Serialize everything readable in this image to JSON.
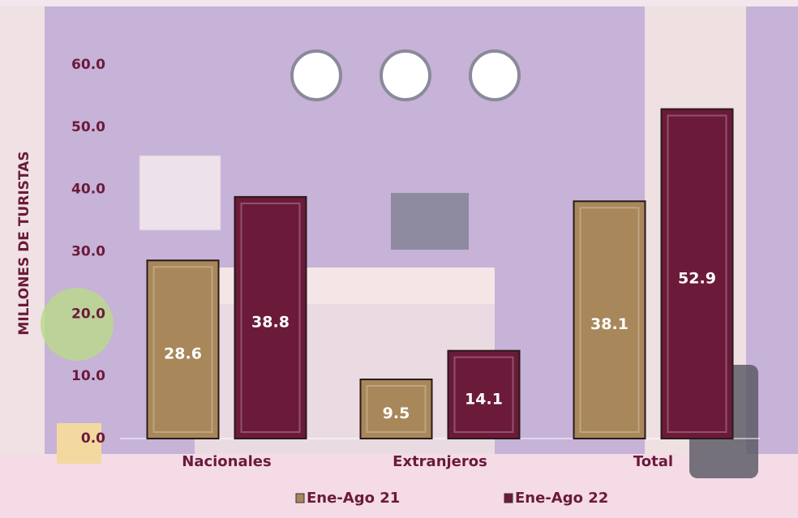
{
  "chart_data": {
    "type": "bar",
    "y_label": "MILLONES DE TURISTAS",
    "categories": [
      "Nacionales",
      "Extranjeros",
      "Total"
    ],
    "series": [
      {
        "name": "Ene-Ago 21",
        "color": "#a8875a",
        "values": [
          28.6,
          9.5,
          38.1
        ]
      },
      {
        "name": "Ene-Ago 22",
        "color": "#6b1a3a",
        "values": [
          38.8,
          14.1,
          52.9
        ]
      }
    ],
    "ylim": [
      0,
      60
    ],
    "yticks": [
      {
        "value": 0,
        "label": "0.0"
      },
      {
        "value": 10,
        "label": "10.0"
      },
      {
        "value": 20,
        "label": "20.0"
      },
      {
        "value": 30,
        "label": "30.0"
      },
      {
        "value": 40,
        "label": "40.0"
      },
      {
        "value": 50,
        "label": "50.0"
      },
      {
        "value": 60,
        "label": "60.0"
      }
    ]
  }
}
